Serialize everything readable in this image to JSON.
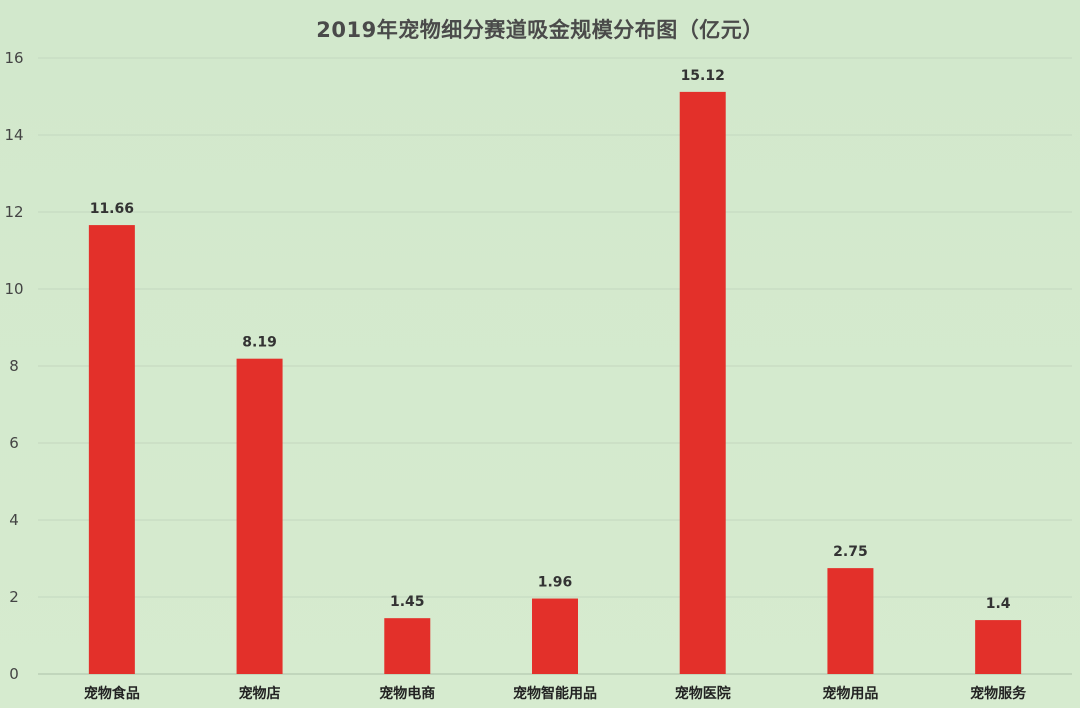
{
  "chart_data": {
    "type": "bar",
    "title": "2019年宠物细分赛道吸金规模分布图（亿元）",
    "categories": [
      "宠物食品",
      "宠物店",
      "宠物电商",
      "宠物智能用品",
      "宠物医院",
      "宠物用品",
      "宠物服务"
    ],
    "values": [
      11.66,
      8.19,
      1.45,
      1.96,
      15.12,
      2.75,
      1.4
    ],
    "value_labels": [
      "11.66",
      "8.19",
      "1.45",
      "1.96",
      "15.12",
      "2.75",
      "1.4"
    ],
    "ylim": [
      0,
      16
    ],
    "yticks": [
      "0",
      "2",
      "4",
      "6",
      "8",
      "10",
      "12",
      "14",
      "16"
    ],
    "grid": true,
    "legend": "none",
    "bar_color": "#e3302a",
    "background_color": "#d4eacd"
  }
}
